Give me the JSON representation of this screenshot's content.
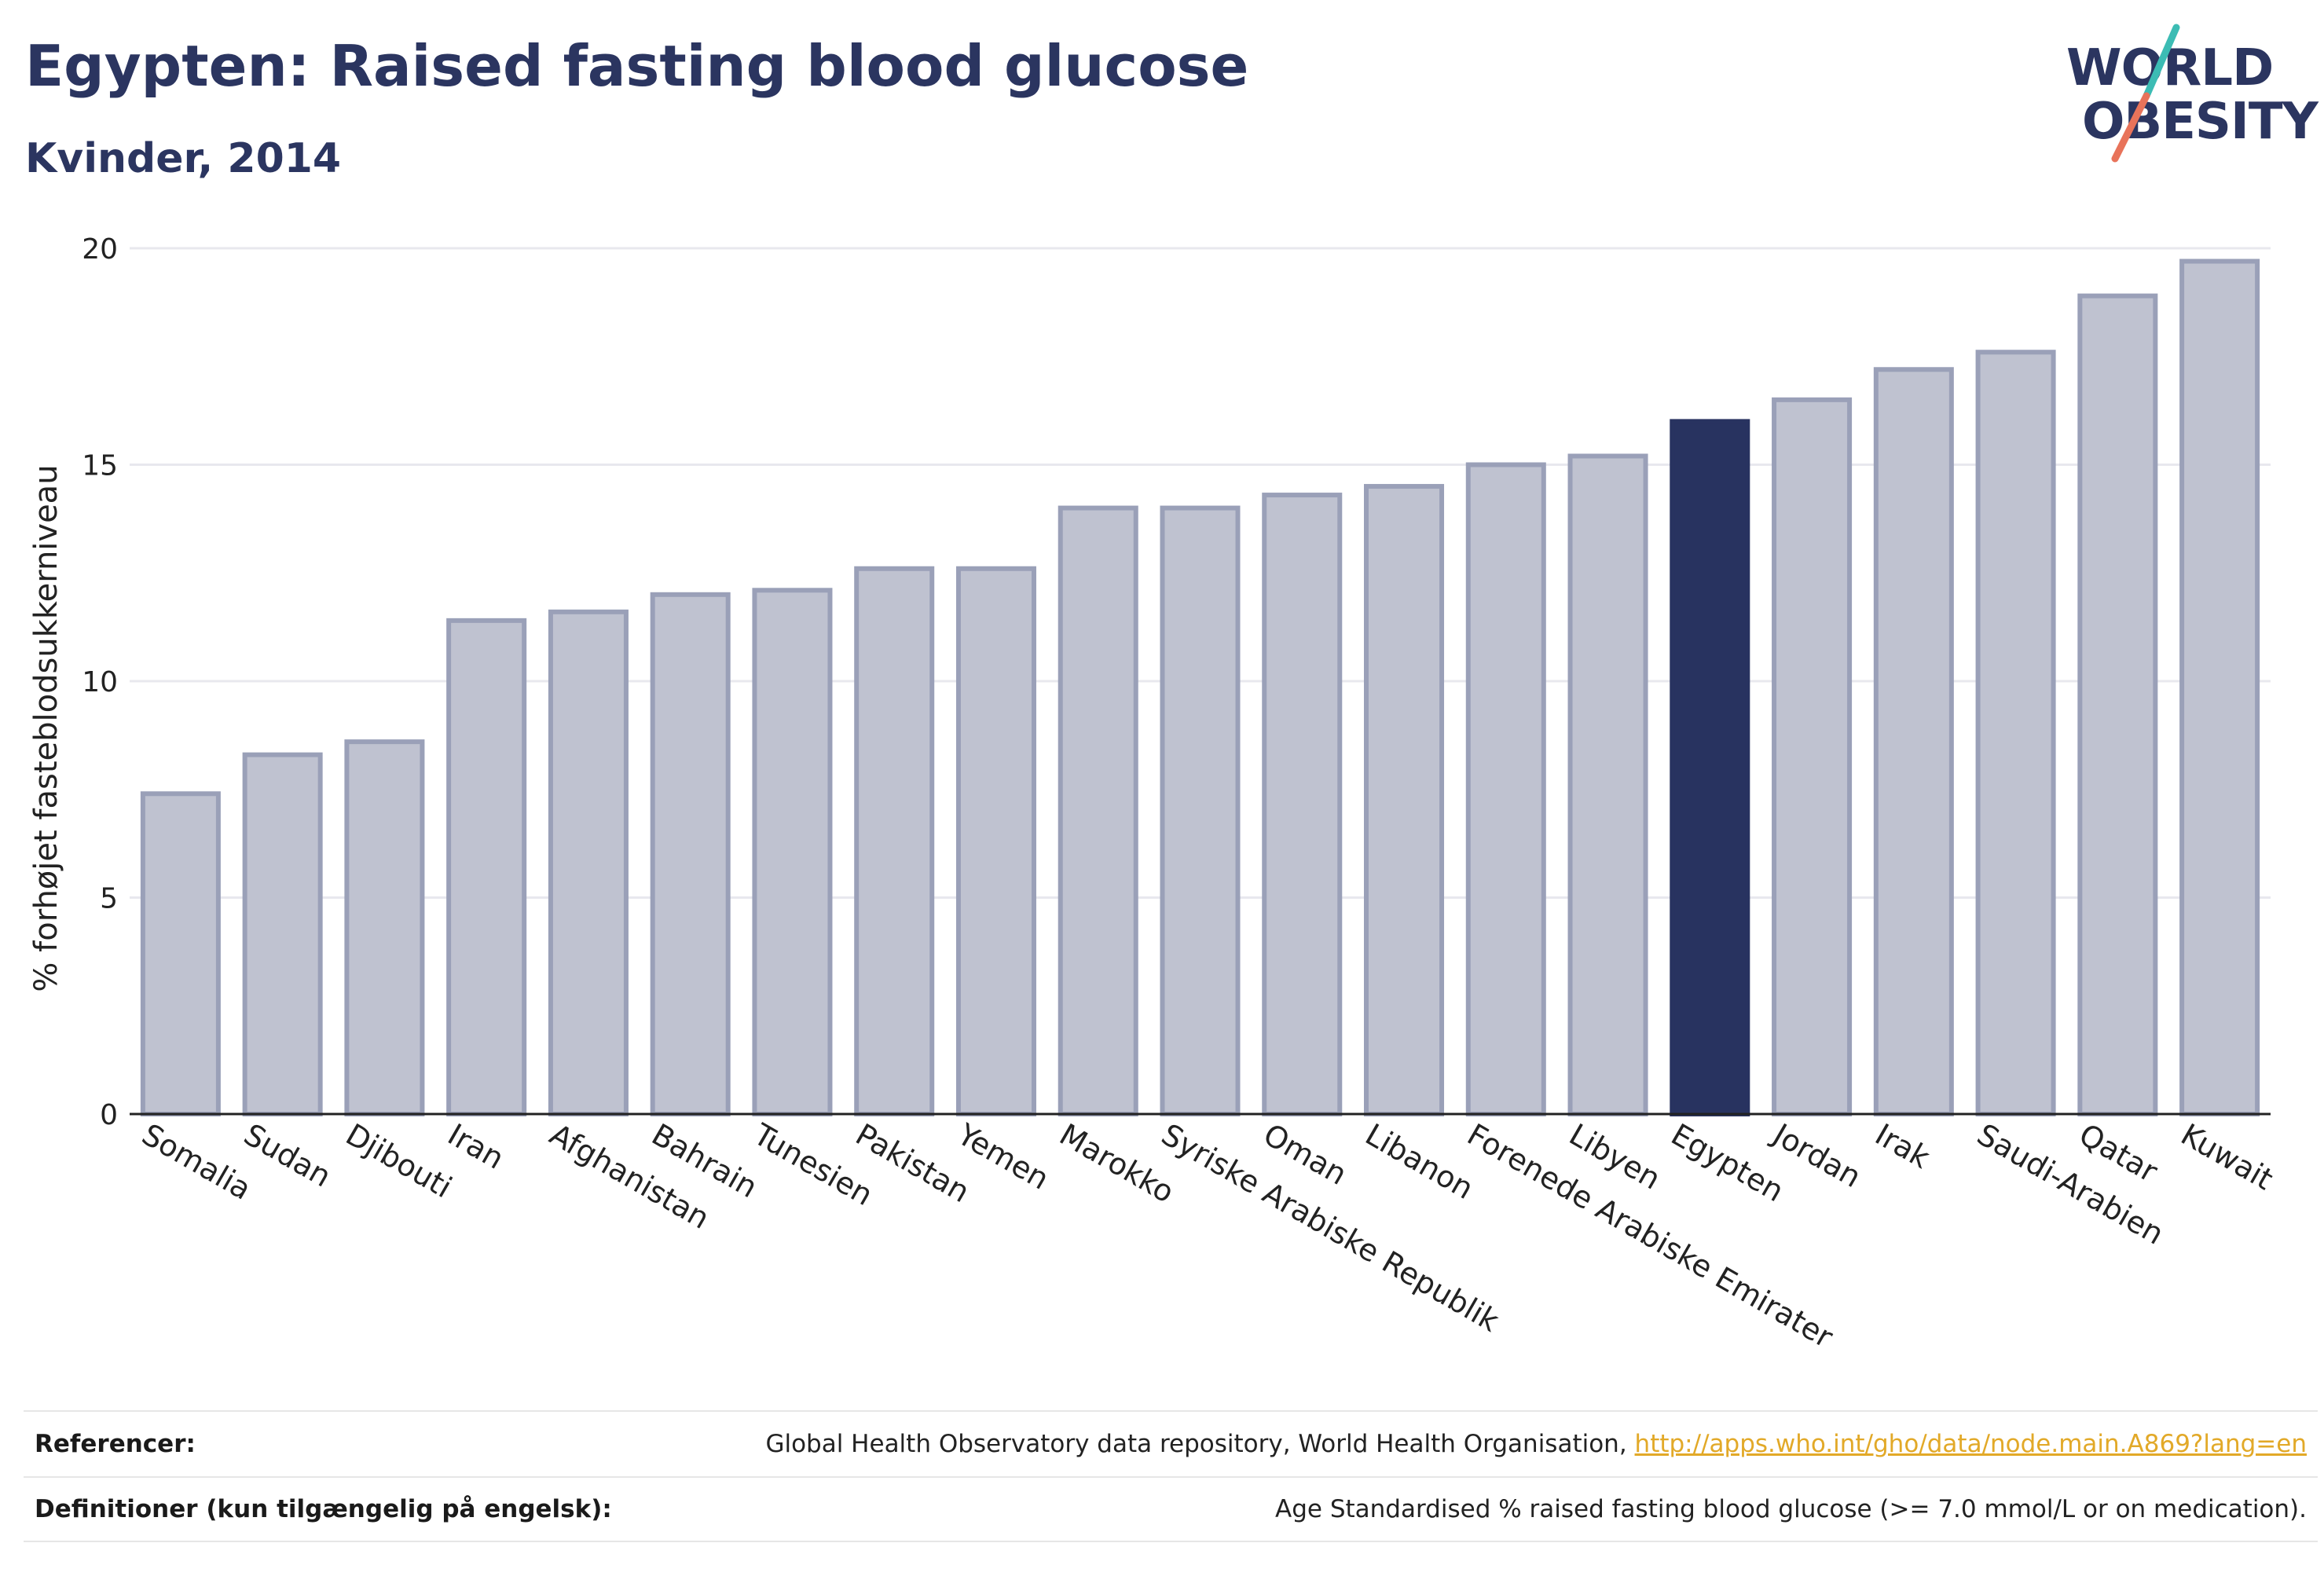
{
  "header": {
    "title": "Egypten: Raised fasting blood glucose",
    "subtitle": "Kvinder, 2014"
  },
  "logo": {
    "line1": "WORLD",
    "line2": "OBESITY"
  },
  "colors": {
    "bar": "#bfc2d0",
    "bar_stroke": "#9aa0b8",
    "highlight": "#283360",
    "title": "#2b3560",
    "link": "#e2a928",
    "logo_teal": "#3cbcb4",
    "logo_coral": "#e8735a"
  },
  "chart_data": {
    "type": "bar",
    "title": "Egypten: Raised fasting blood glucose",
    "subtitle": "Kvinder, 2014",
    "xlabel": "",
    "ylabel": "% forhøjet fasteblodsukkerniveau",
    "ylim": [
      0,
      20
    ],
    "yticks": [
      0,
      5,
      10,
      15,
      20
    ],
    "grid": true,
    "highlight": "Egypten",
    "categories": [
      "Somalia",
      "Sudan",
      "Djibouti",
      "Iran",
      "Afghanistan",
      "Bahrain",
      "Tunesien",
      "Pakistan",
      "Yemen",
      "Marokko",
      "Syriske Arabiske Republik",
      "Oman",
      "Libanon",
      "Forenede Arabiske Emirater",
      "Libyen",
      "Egypten",
      "Jordan",
      "Irak",
      "Saudi-Arabien",
      "Qatar",
      "Kuwait"
    ],
    "values": [
      7.4,
      8.3,
      8.6,
      11.4,
      11.6,
      12.0,
      12.1,
      12.6,
      12.6,
      14.0,
      14.0,
      14.3,
      14.5,
      15.0,
      15.2,
      16.0,
      16.5,
      17.2,
      17.6,
      18.9,
      19.7
    ]
  },
  "footer": {
    "references_label": "Referencer:",
    "references_text": "Global Health Observatory data repository, World Health Organisation, ",
    "references_link": "http://apps.who.int/gho/data/node.main.A869?lang=en",
    "definitions_label": "Definitioner (kun tilgængelig på engelsk):",
    "definitions_text": "Age Standardised % raised fasting blood glucose (>= 7.0 mmol/L or on medication)."
  }
}
